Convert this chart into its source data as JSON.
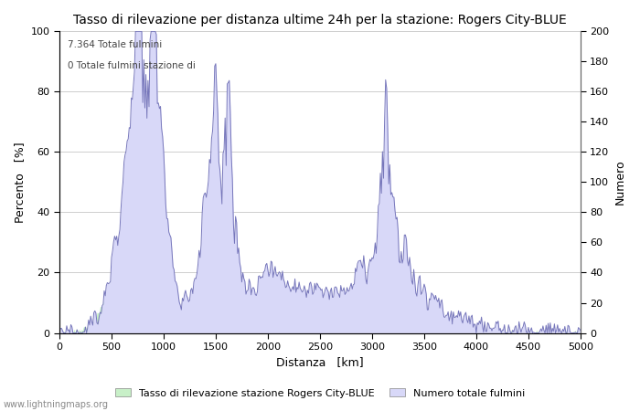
{
  "title": "Tasso di rilevazione per distanza ultime 24h per la stazione: Rogers City-BLUE",
  "xlabel": "Distanza   [km]",
  "ylabel_left": "Percento   [%]",
  "ylabel_right": "Numero",
  "annotation_line1": "7.364 Totale fulmini",
  "annotation_line2": "0 Totale fulmini stazione di",
  "xlim": [
    0,
    5000
  ],
  "ylim_left": [
    0,
    100
  ],
  "ylim_right": [
    0,
    200
  ],
  "xticks": [
    0,
    500,
    1000,
    1500,
    2000,
    2500,
    3000,
    3500,
    4000,
    4500,
    5000
  ],
  "yticks_left": [
    0,
    20,
    40,
    60,
    80,
    100
  ],
  "yticks_right": [
    0,
    20,
    40,
    60,
    80,
    100,
    120,
    140,
    160,
    180,
    200
  ],
  "legend_label_green": "Tasso di rilevazione stazione Rogers City-BLUE",
  "legend_label_blue": "Numero totale fulmini",
  "fill_green_color": "#c8f0c8",
  "fill_blue_color": "#d8d8f8",
  "line_color": "#7777bb",
  "watermark": "www.lightningmaps.org",
  "background_color": "#ffffff",
  "grid_color": "#aaaaaa",
  "title_fontsize": 10,
  "axis_fontsize": 9,
  "tick_fontsize": 8
}
